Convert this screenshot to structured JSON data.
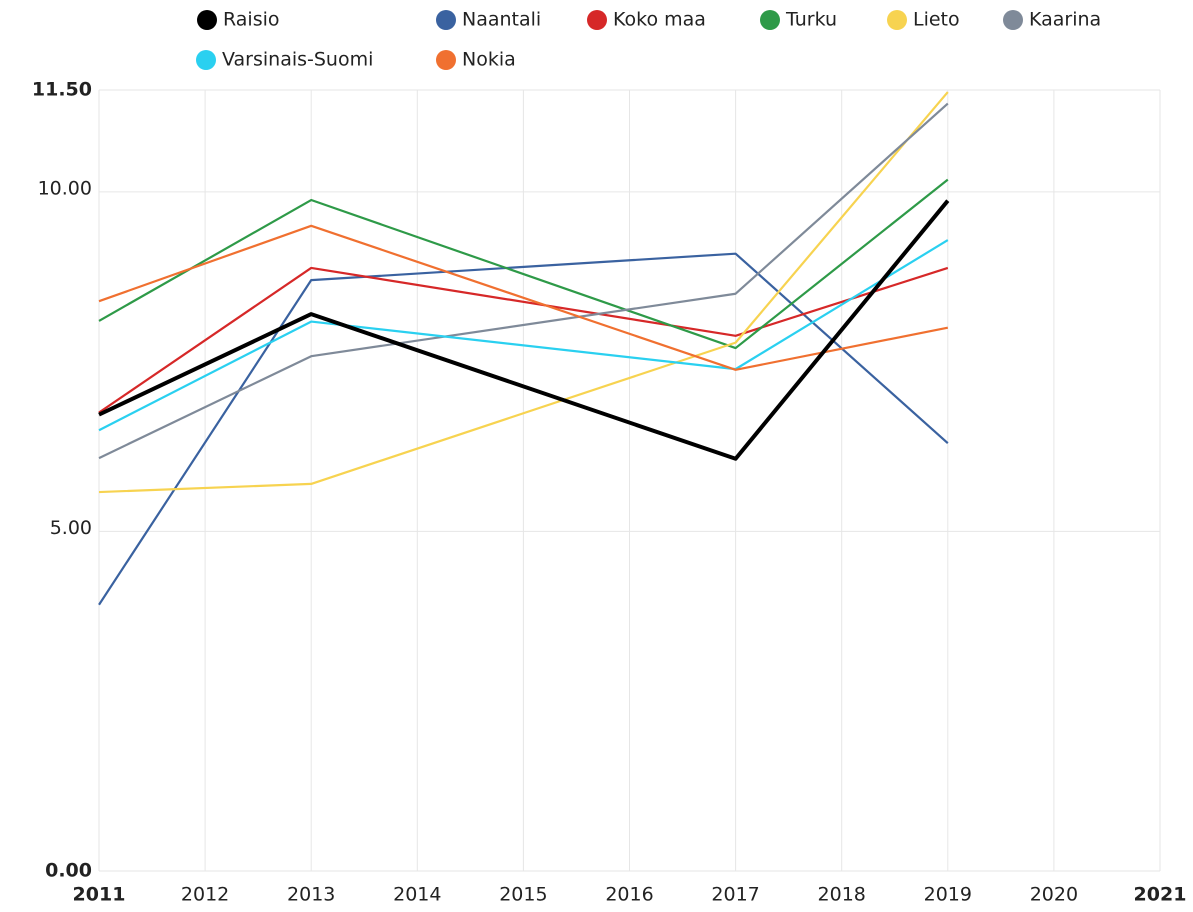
{
  "chart_data": {
    "type": "line",
    "x": [
      2011,
      2013,
      2017,
      2019
    ],
    "xlim": [
      2011,
      2021
    ],
    "xticks": [
      2011,
      2012,
      2013,
      2014,
      2015,
      2016,
      2017,
      2018,
      2019,
      2020,
      2021
    ],
    "ylim": [
      0,
      11.5
    ],
    "yticks": [
      {
        "value": 0,
        "label": "0.00"
      },
      {
        "value": 5,
        "label": "5.00"
      },
      {
        "value": 10,
        "label": "10.00"
      },
      {
        "value": 11.5,
        "label": "11.50"
      }
    ],
    "grid": true,
    "series": [
      {
        "name": "Raisio",
        "color": "#000000",
        "values": [
          6.72,
          8.2,
          6.07,
          9.87
        ]
      },
      {
        "name": "Naantali",
        "color": "#3a62a0",
        "values": [
          3.92,
          8.7,
          9.09,
          6.3
        ]
      },
      {
        "name": "Koko maa",
        "color": "#d62828",
        "values": [
          6.75,
          8.88,
          7.88,
          8.88
        ]
      },
      {
        "name": "Turku",
        "color": "#2e9a48",
        "values": [
          8.1,
          9.88,
          7.7,
          10.18
        ]
      },
      {
        "name": "Lieto",
        "color": "#f7d350",
        "values": [
          5.58,
          5.7,
          7.78,
          11.47
        ]
      },
      {
        "name": "Kaarina",
        "color": "#7f8a99",
        "values": [
          6.08,
          7.58,
          8.5,
          11.3
        ]
      },
      {
        "name": "Varsinais-Suomi",
        "color": "#2ad0f0",
        "values": [
          6.49,
          8.09,
          7.39,
          9.29
        ]
      },
      {
        "name": "Nokia",
        "color": "#f07030",
        "values": [
          8.39,
          9.5,
          7.38,
          8.0
        ]
      }
    ]
  }
}
